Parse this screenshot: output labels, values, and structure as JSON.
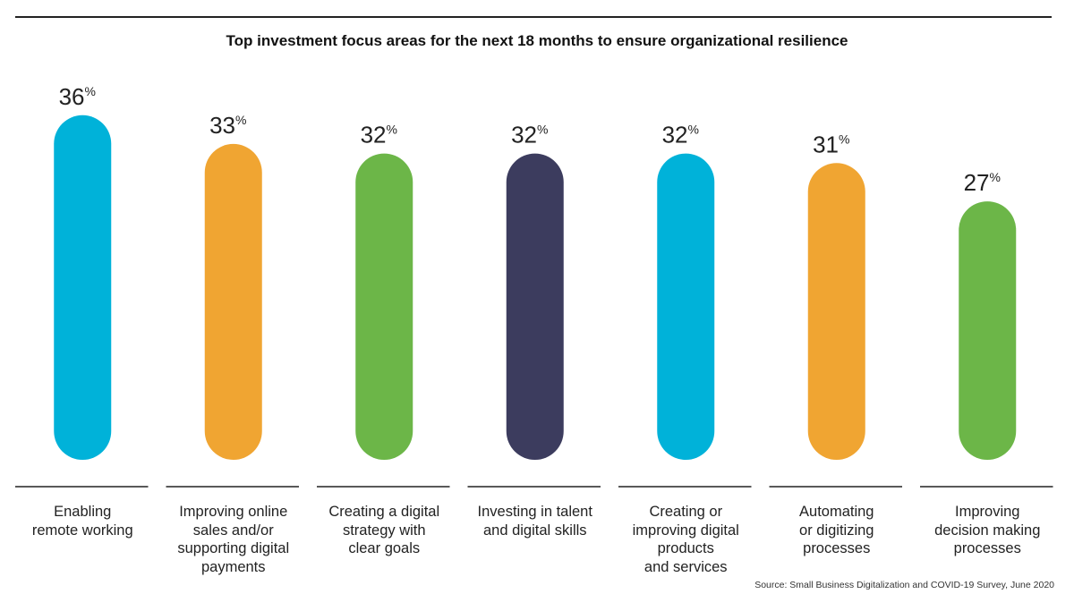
{
  "chart_data": {
    "type": "bar",
    "title": "Top investment focus areas for the next 18 months to ensure organizational resilience",
    "categories": [
      "Enabling\nremote working",
      "Improving online\nsales and/or\nsupporting digital\npayments",
      "Creating a digital\nstrategy with\nclear goals",
      "Investing in talent\nand digital skills",
      "Creating or\nimproving digital\nproducts\nand services",
      "Automating\nor digitizing\nprocesses",
      "Improving\ndecision making\nprocesses"
    ],
    "values": [
      36,
      33,
      32,
      32,
      32,
      31,
      27
    ],
    "value_unit": "%",
    "colors": [
      "#00b2d9",
      "#f0a532",
      "#6cb648",
      "#3c3c5e",
      "#00b2d9",
      "#f0a532",
      "#6cb648"
    ],
    "xlabel": "",
    "ylabel": "",
    "ylim": [
      0,
      36
    ],
    "grid": false
  },
  "source": "Source: Small Business Digitalization and COVID-19 Survey, June 2020"
}
